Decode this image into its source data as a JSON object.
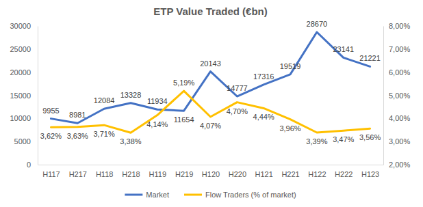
{
  "chart_data": {
    "type": "line",
    "title": "ETP Value Traded (€bn)",
    "categories": [
      "H117",
      "H217",
      "H118",
      "H218",
      "H119",
      "H219",
      "H120",
      "H220",
      "H121",
      "H221",
      "H122",
      "H222",
      "H123"
    ],
    "series": [
      {
        "name": "Market",
        "color": "#4472c4",
        "values": [
          9955,
          8981,
          12084,
          13328,
          11934,
          11654,
          20143,
          14777,
          17316,
          19519,
          28670,
          23141,
          21221
        ]
      },
      {
        "name": "Flow Traders (% of market)",
        "color": "#ffc000",
        "axis": "y2",
        "values": [
          3.62,
          3.63,
          3.71,
          3.38,
          4.14,
          5.19,
          4.07,
          4.7,
          4.44,
          3.96,
          3.39,
          3.47,
          3.56
        ],
        "value_labels": [
          "3,62%",
          "3,63%",
          "3,71%",
          "3,38%",
          "4,14%",
          "5,19%",
          "4,07%",
          "4,70%",
          "4,44%",
          "3,96%",
          "3,39%",
          "3,47%",
          "3,56%"
        ]
      }
    ],
    "ylim": [
      0,
      30000
    ],
    "yticks": [
      0,
      5000,
      10000,
      15000,
      20000,
      25000,
      30000
    ],
    "y2lim": [
      2,
      8
    ],
    "y2ticks": [
      {
        "value": 2,
        "label": "2,00%"
      },
      {
        "value": 3,
        "label": "3,00%"
      },
      {
        "value": 4,
        "label": "4,00%"
      },
      {
        "value": 5,
        "label": "5,00%"
      },
      {
        "value": 6,
        "label": "6,00%"
      },
      {
        "value": 7,
        "label": "7,00%"
      },
      {
        "value": 8,
        "label": "8,00%"
      }
    ],
    "grid": false,
    "legend": "bottom",
    "data_labels": true
  }
}
